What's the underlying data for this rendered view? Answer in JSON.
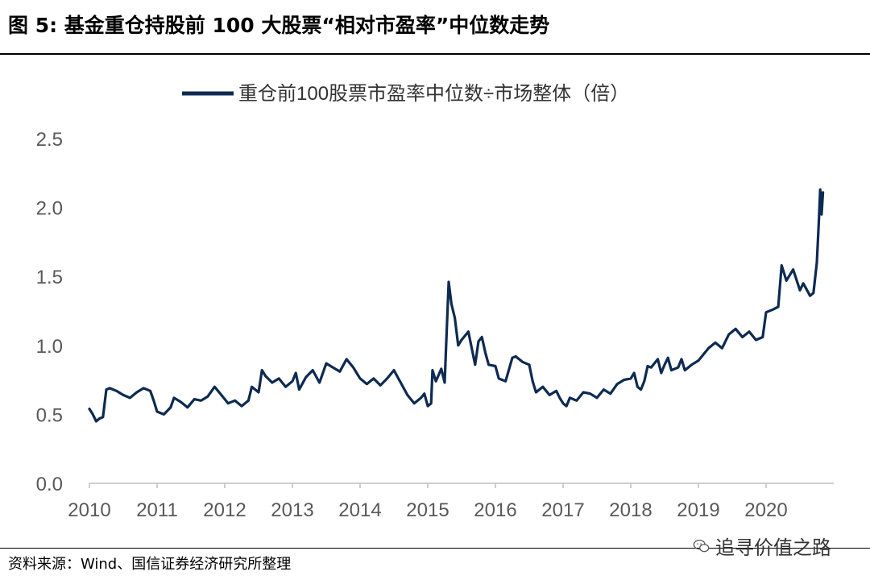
{
  "figure": {
    "title": "图  5:  基金重仓持股前 100 大股票“相对市盈率”中位数走势",
    "source": "资料来源：Wind、国信证券经济研究所整理",
    "watermark": "追寻价值之路",
    "watermark_icon": "wechat-icon"
  },
  "chart_data": {
    "type": "line",
    "title": "",
    "xlabel": "",
    "ylabel": "",
    "xlim": [
      2010,
      2021
    ],
    "ylim": [
      0,
      2.5
    ],
    "x_ticks": [
      "2010",
      "2011",
      "2012",
      "2013",
      "2014",
      "2015",
      "2016",
      "2017",
      "2018",
      "2019",
      "2020"
    ],
    "y_ticks": [
      "0.0",
      "0.5",
      "1.0",
      "1.5",
      "2.0",
      "2.5"
    ],
    "grid": false,
    "legend_position": "top-center",
    "series": [
      {
        "name": "重仓前100股票市盈率中位数÷市场整体（倍）",
        "color": "#0d2a52",
        "points": [
          [
            2010.0,
            0.54
          ],
          [
            2010.05,
            0.5
          ],
          [
            2010.1,
            0.45
          ],
          [
            2010.15,
            0.47
          ],
          [
            2010.2,
            0.48
          ],
          [
            2010.25,
            0.68
          ],
          [
            2010.3,
            0.69
          ],
          [
            2010.4,
            0.67
          ],
          [
            2010.5,
            0.64
          ],
          [
            2010.6,
            0.62
          ],
          [
            2010.7,
            0.66
          ],
          [
            2010.8,
            0.69
          ],
          [
            2010.9,
            0.67
          ],
          [
            2010.95,
            0.6
          ],
          [
            2011.0,
            0.52
          ],
          [
            2011.1,
            0.5
          ],
          [
            2011.2,
            0.55
          ],
          [
            2011.25,
            0.62
          ],
          [
            2011.35,
            0.59
          ],
          [
            2011.45,
            0.55
          ],
          [
            2011.55,
            0.61
          ],
          [
            2011.65,
            0.6
          ],
          [
            2011.75,
            0.63
          ],
          [
            2011.85,
            0.7
          ],
          [
            2011.95,
            0.64
          ],
          [
            2012.05,
            0.58
          ],
          [
            2012.15,
            0.6
          ],
          [
            2012.25,
            0.56
          ],
          [
            2012.35,
            0.6
          ],
          [
            2012.4,
            0.7
          ],
          [
            2012.5,
            0.66
          ],
          [
            2012.55,
            0.82
          ],
          [
            2012.6,
            0.78
          ],
          [
            2012.7,
            0.73
          ],
          [
            2012.8,
            0.76
          ],
          [
            2012.9,
            0.7
          ],
          [
            2013.0,
            0.74
          ],
          [
            2013.05,
            0.8
          ],
          [
            2013.1,
            0.68
          ],
          [
            2013.2,
            0.77
          ],
          [
            2013.3,
            0.82
          ],
          [
            2013.4,
            0.73
          ],
          [
            2013.5,
            0.87
          ],
          [
            2013.6,
            0.84
          ],
          [
            2013.7,
            0.81
          ],
          [
            2013.8,
            0.9
          ],
          [
            2013.9,
            0.84
          ],
          [
            2014.0,
            0.76
          ],
          [
            2014.1,
            0.72
          ],
          [
            2014.2,
            0.76
          ],
          [
            2014.3,
            0.71
          ],
          [
            2014.4,
            0.76
          ],
          [
            2014.5,
            0.82
          ],
          [
            2014.6,
            0.73
          ],
          [
            2014.7,
            0.64
          ],
          [
            2014.8,
            0.58
          ],
          [
            2014.9,
            0.62
          ],
          [
            2014.95,
            0.65
          ],
          [
            2015.0,
            0.56
          ],
          [
            2015.05,
            0.58
          ],
          [
            2015.07,
            0.82
          ],
          [
            2015.12,
            0.74
          ],
          [
            2015.2,
            0.83
          ],
          [
            2015.25,
            0.73
          ],
          [
            2015.28,
            1.1
          ],
          [
            2015.31,
            1.46
          ],
          [
            2015.35,
            1.3
          ],
          [
            2015.4,
            1.2
          ],
          [
            2015.45,
            1.0
          ],
          [
            2015.5,
            1.04
          ],
          [
            2015.6,
            1.1
          ],
          [
            2015.65,
            0.98
          ],
          [
            2015.7,
            0.86
          ],
          [
            2015.75,
            1.03
          ],
          [
            2015.8,
            1.06
          ],
          [
            2015.85,
            0.95
          ],
          [
            2015.9,
            0.86
          ],
          [
            2016.0,
            0.85
          ],
          [
            2016.05,
            0.76
          ],
          [
            2016.15,
            0.74
          ],
          [
            2016.25,
            0.91
          ],
          [
            2016.3,
            0.92
          ],
          [
            2016.4,
            0.88
          ],
          [
            2016.5,
            0.86
          ],
          [
            2016.55,
            0.74
          ],
          [
            2016.6,
            0.66
          ],
          [
            2016.7,
            0.7
          ],
          [
            2016.8,
            0.64
          ],
          [
            2016.9,
            0.67
          ],
          [
            2016.95,
            0.62
          ],
          [
            2017.0,
            0.58
          ],
          [
            2017.05,
            0.56
          ],
          [
            2017.1,
            0.62
          ],
          [
            2017.2,
            0.6
          ],
          [
            2017.3,
            0.66
          ],
          [
            2017.4,
            0.65
          ],
          [
            2017.5,
            0.62
          ],
          [
            2017.6,
            0.68
          ],
          [
            2017.7,
            0.65
          ],
          [
            2017.8,
            0.72
          ],
          [
            2017.9,
            0.75
          ],
          [
            2018.0,
            0.76
          ],
          [
            2018.05,
            0.8
          ],
          [
            2018.1,
            0.7
          ],
          [
            2018.15,
            0.68
          ],
          [
            2018.2,
            0.74
          ],
          [
            2018.25,
            0.85
          ],
          [
            2018.3,
            0.84
          ],
          [
            2018.4,
            0.9
          ],
          [
            2018.45,
            0.8
          ],
          [
            2018.5,
            0.86
          ],
          [
            2018.55,
            0.91
          ],
          [
            2018.6,
            0.82
          ],
          [
            2018.7,
            0.84
          ],
          [
            2018.75,
            0.9
          ],
          [
            2018.8,
            0.82
          ],
          [
            2018.9,
            0.86
          ],
          [
            2019.0,
            0.89
          ],
          [
            2019.05,
            0.92
          ],
          [
            2019.15,
            0.98
          ],
          [
            2019.25,
            1.02
          ],
          [
            2019.35,
            0.98
          ],
          [
            2019.45,
            1.08
          ],
          [
            2019.55,
            1.12
          ],
          [
            2019.65,
            1.06
          ],
          [
            2019.75,
            1.1
          ],
          [
            2019.85,
            1.04
          ],
          [
            2019.95,
            1.06
          ],
          [
            2020.0,
            1.24
          ],
          [
            2020.1,
            1.26
          ],
          [
            2020.18,
            1.28
          ],
          [
            2020.23,
            1.58
          ],
          [
            2020.3,
            1.47
          ],
          [
            2020.4,
            1.55
          ],
          [
            2020.5,
            1.4
          ],
          [
            2020.55,
            1.45
          ],
          [
            2020.65,
            1.36
          ],
          [
            2020.7,
            1.38
          ],
          [
            2020.75,
            1.6
          ],
          [
            2020.78,
            1.9
          ],
          [
            2020.8,
            2.13
          ],
          [
            2020.82,
            1.95
          ],
          [
            2020.84,
            2.11
          ]
        ]
      }
    ]
  }
}
